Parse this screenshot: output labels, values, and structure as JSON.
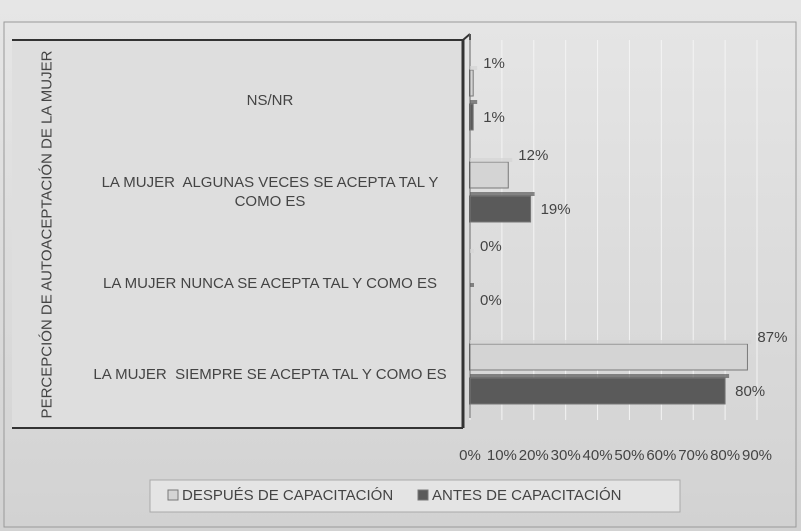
{
  "chart_data": {
    "type": "bar",
    "orientation": "horizontal",
    "y_axis_label": "PERCEPCIÓN DE AUTOACEPTACIÓN DE LA MUJER",
    "categories": [
      "NS/NR",
      "LA MUJER  ALGUNAS VECES SE ACEPTA TAL Y COMO ES",
      "LA MUJER NUNCA SE ACEPTA TAL Y COMO ES",
      "LA MUJER  SIEMPRE SE ACEPTA TAL Y COMO ES"
    ],
    "series": [
      {
        "name": "DESPUÉS DE CAPACITACIÓN",
        "color": "#d4d4d4",
        "values": [
          1,
          12,
          0,
          87
        ],
        "value_labels": [
          "1%",
          "12%",
          "0%",
          "87%"
        ]
      },
      {
        "name": "ANTES DE CAPACITACIÓN",
        "color": "#5a5a5a",
        "values": [
          1,
          19,
          0,
          80
        ],
        "value_labels": [
          "1%",
          "19%",
          "0%",
          "80%"
        ]
      }
    ],
    "xlim": [
      0,
      90
    ],
    "xticks": [
      {
        "value": 0,
        "label": "0%"
      },
      {
        "value": 10,
        "label": "10%"
      },
      {
        "value": 20,
        "label": "20%"
      },
      {
        "value": 30,
        "label": "30%"
      },
      {
        "value": 40,
        "label": "40%"
      },
      {
        "value": 50,
        "label": "50%"
      },
      {
        "value": 60,
        "label": "60%"
      },
      {
        "value": 70,
        "label": "70%"
      },
      {
        "value": 80,
        "label": "80%"
      },
      {
        "value": 90,
        "label": "90%"
      }
    ],
    "grid": true,
    "legend": "bottom"
  }
}
